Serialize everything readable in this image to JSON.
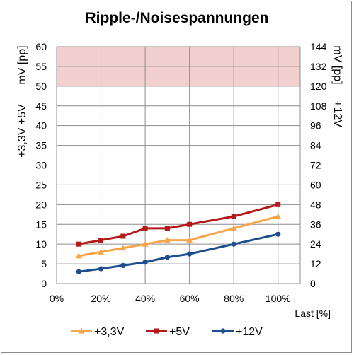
{
  "chart_data": {
    "type": "line",
    "title": "Ripple-/Noisespannungen",
    "xlabel": "Last [%]",
    "ylabel_left_top": "mV [pp]",
    "ylabel_left_bottom": "+3,3V +5V",
    "ylabel_right_top": "mV [pp]",
    "ylabel_right_bottom": "+12V",
    "x_ticks": [
      "0%",
      "20%",
      "40%",
      "60%",
      "80%",
      "100%"
    ],
    "xlim": [
      0,
      110
    ],
    "ylim_left": [
      0,
      60
    ],
    "ylim_right": [
      0,
      144
    ],
    "y_ticks_left": [
      "0",
      "5",
      "10",
      "15",
      "20",
      "25",
      "30",
      "35",
      "40",
      "45",
      "50",
      "55",
      "60"
    ],
    "y_ticks_right": [
      "0",
      "12",
      "24",
      "36",
      "48",
      "60",
      "72",
      "84",
      "96",
      "108",
      "120",
      "132",
      "144"
    ],
    "limit_band_left": [
      50,
      60
    ],
    "limit_band_color": "#f2d0d0",
    "grid": true,
    "legend_position": "bottom",
    "series": [
      {
        "name": "+3,3V",
        "axis": "left",
        "color": "#f6a54b",
        "marker": "triangle",
        "x": [
          10,
          20,
          30,
          40,
          50,
          60,
          80,
          100
        ],
        "values": [
          7,
          8,
          9,
          10,
          11,
          11,
          14,
          17
        ]
      },
      {
        "name": "+5V",
        "axis": "left",
        "color": "#b31b1b",
        "marker": "square",
        "x": [
          10,
          20,
          30,
          40,
          50,
          60,
          80,
          100
        ],
        "values": [
          10,
          11,
          12,
          14,
          14,
          15,
          17,
          20
        ]
      },
      {
        "name": "+12V",
        "axis": "right",
        "color": "#1f4e8c",
        "marker": "circle",
        "x": [
          10,
          20,
          30,
          40,
          50,
          60,
          80,
          100
        ],
        "values": [
          7.2,
          9,
          11,
          13,
          16,
          18,
          24,
          30
        ]
      }
    ]
  }
}
